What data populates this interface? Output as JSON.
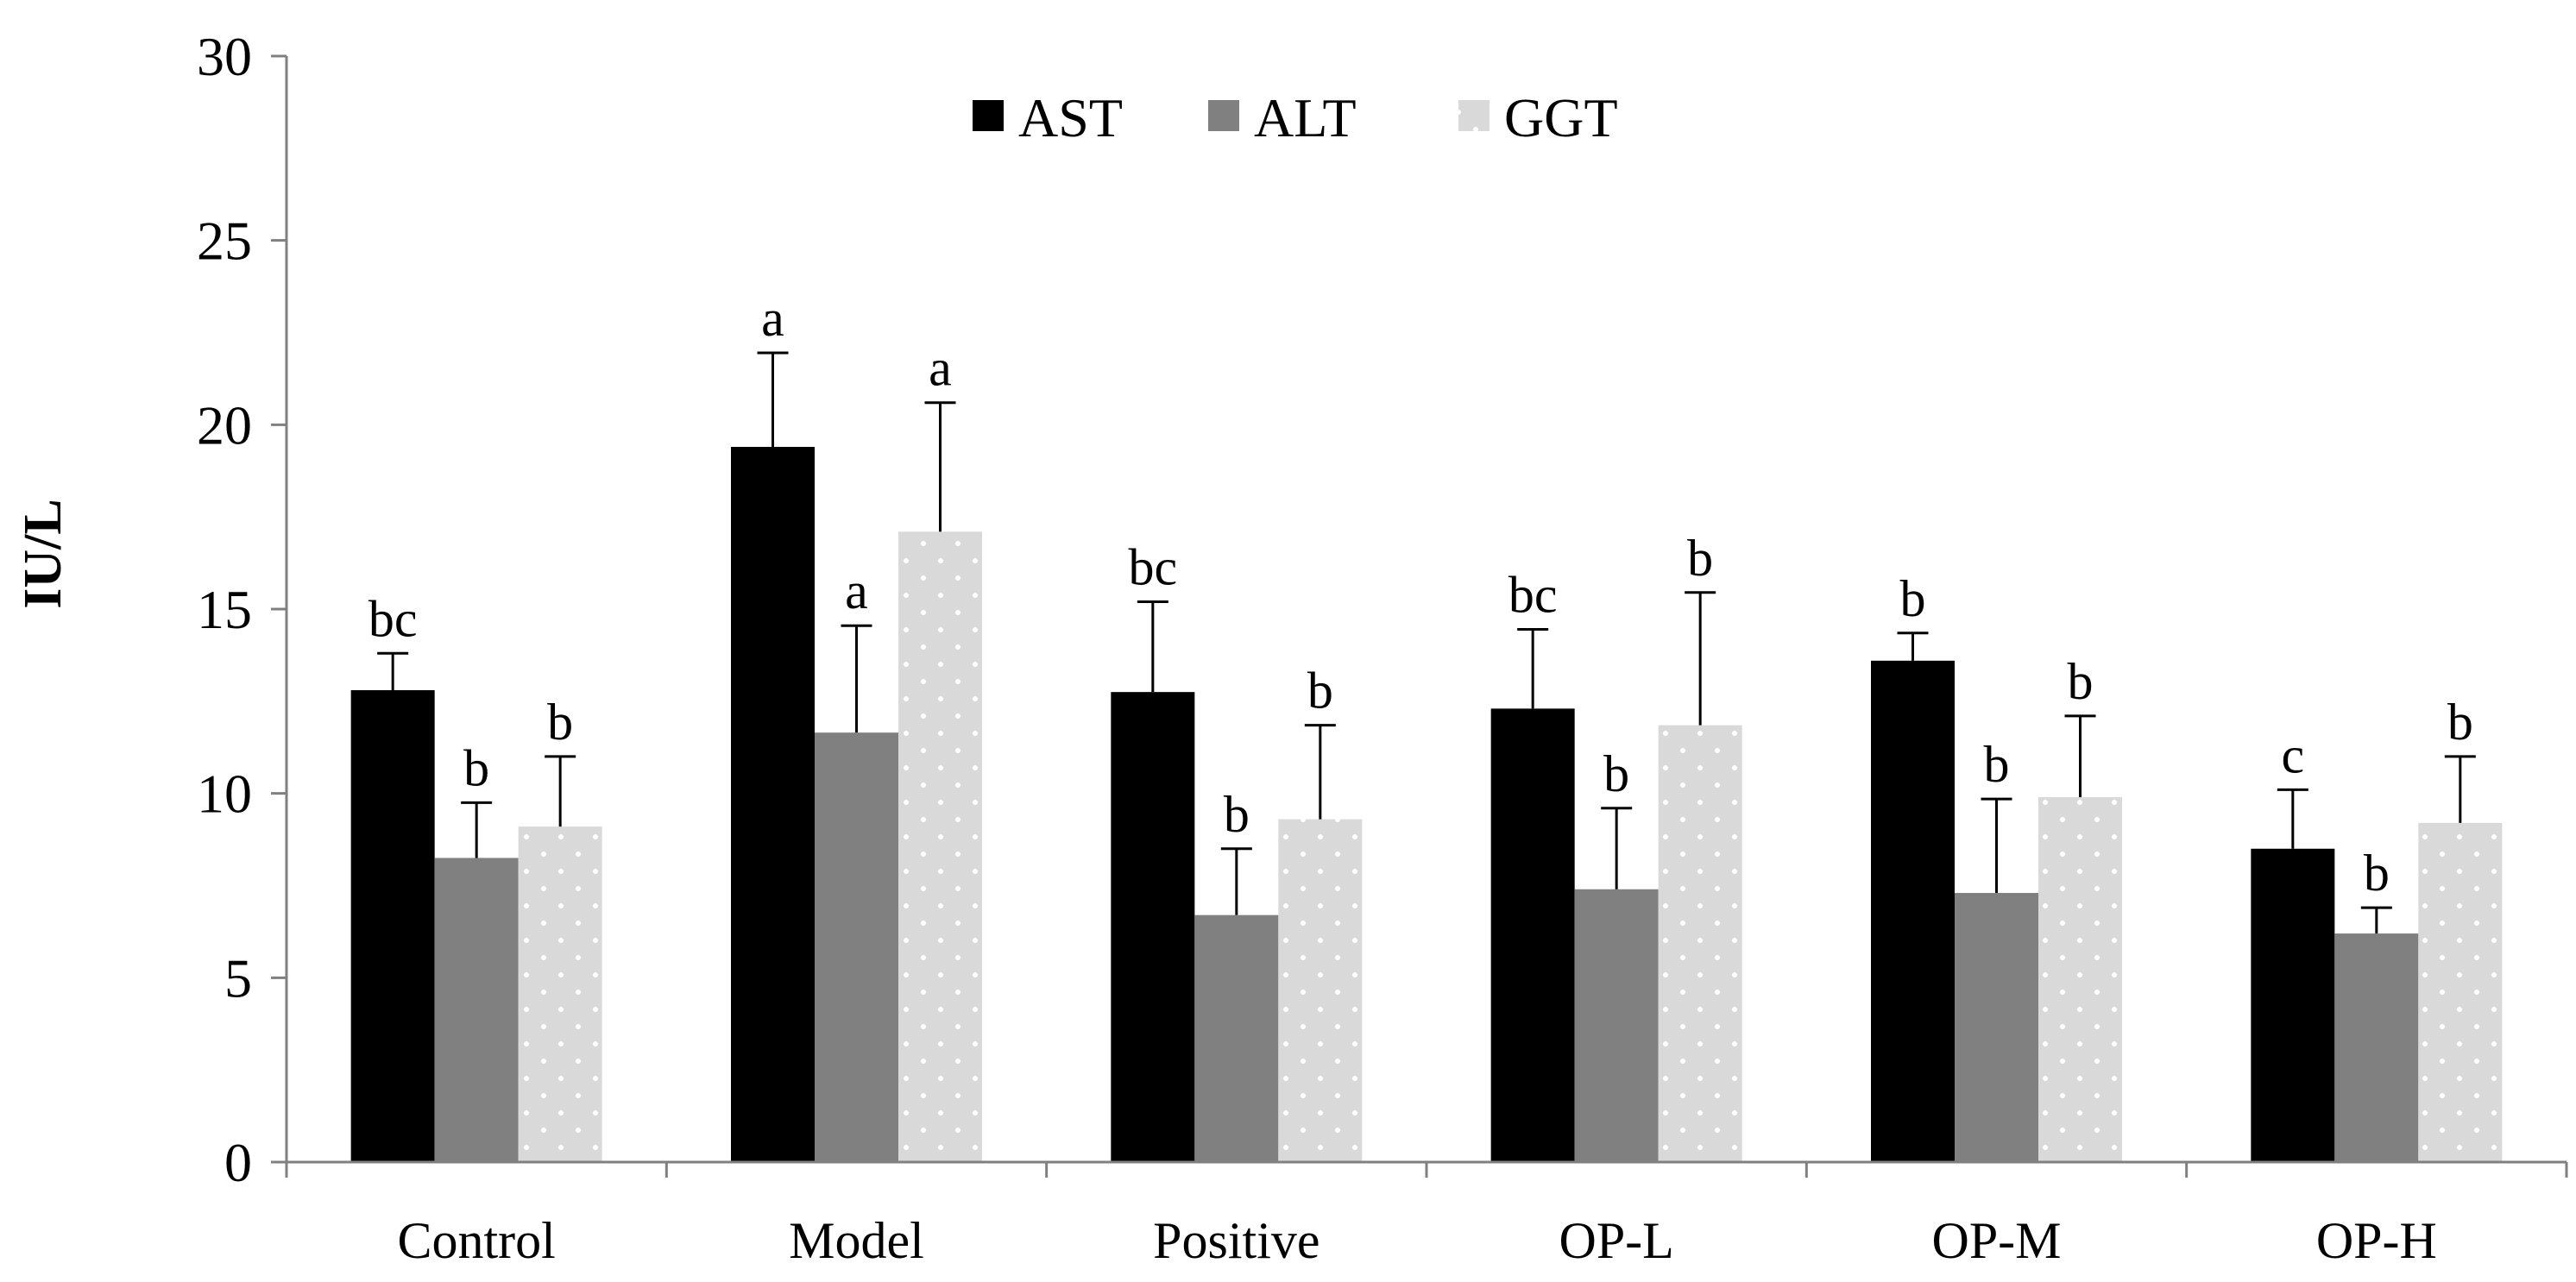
{
  "chart_data": {
    "type": "bar",
    "title": "",
    "xlabel": "",
    "ylabel": "IU/L",
    "ylim": [
      0,
      30
    ],
    "yticks": [
      0,
      5,
      10,
      15,
      20,
      25,
      30
    ],
    "grid": false,
    "legend_position": "top-center",
    "categories": [
      "Control",
      "Model",
      "Positive",
      "OP-L",
      "OP-M",
      "OP-H"
    ],
    "series": [
      {
        "name": "AST",
        "color": "#000000",
        "pattern": "solid",
        "values": [
          12.8,
          19.4,
          12.75,
          12.3,
          13.6,
          8.5
        ],
        "errors": [
          1.0,
          2.55,
          2.45,
          2.15,
          0.75,
          1.6
        ],
        "labels": [
          "bc",
          "a",
          "bc",
          "bc",
          "b",
          "c"
        ]
      },
      {
        "name": "ALT",
        "color": "#808080",
        "pattern": "solid",
        "values": [
          8.25,
          11.65,
          6.7,
          7.4,
          7.3,
          6.2
        ],
        "errors": [
          1.5,
          2.9,
          1.8,
          2.2,
          2.55,
          0.7
        ],
        "labels": [
          "b",
          "a",
          "b",
          "b",
          "b",
          "b"
        ]
      },
      {
        "name": "GGT",
        "color": "#d9d9d9",
        "pattern": "dots",
        "values": [
          9.1,
          17.1,
          9.3,
          11.85,
          9.9,
          9.2
        ],
        "errors": [
          1.9,
          3.5,
          2.55,
          3.6,
          2.2,
          1.8
        ],
        "labels": [
          "b",
          "a",
          "b",
          "b",
          "b",
          "b"
        ]
      }
    ]
  }
}
